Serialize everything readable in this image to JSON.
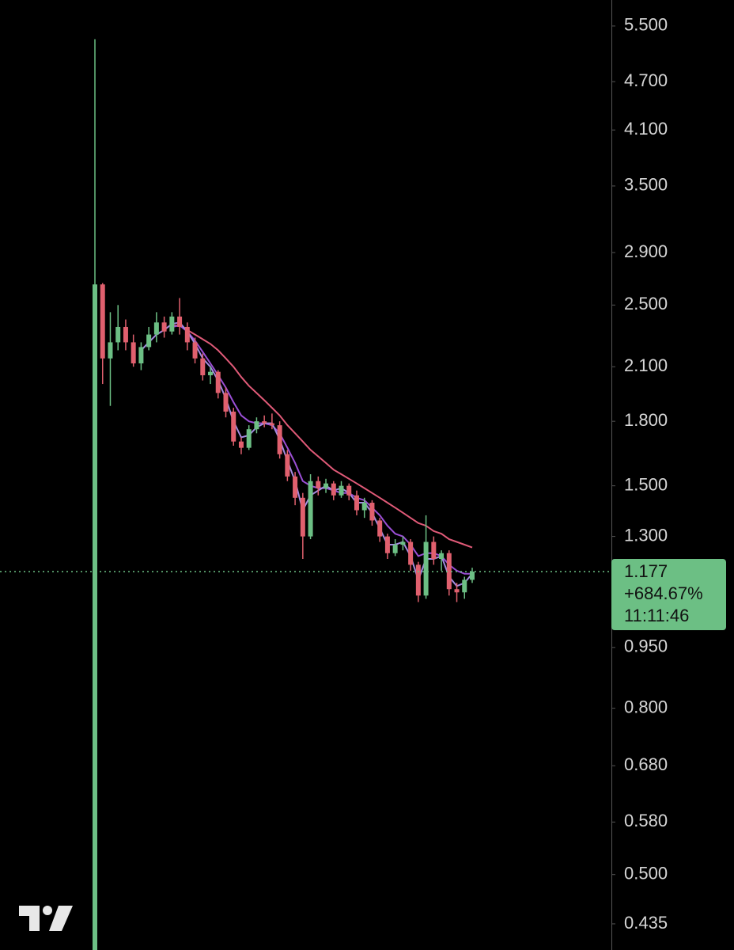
{
  "chart_data": {
    "type": "candlestick",
    "log_scale": true,
    "ylim": [
      0.404,
      5.92
    ],
    "yticks": [
      {
        "value": 5.5,
        "label": "5.500"
      },
      {
        "value": 4.7,
        "label": "4.700"
      },
      {
        "value": 4.1,
        "label": "4.100"
      },
      {
        "value": 3.5,
        "label": "3.500"
      },
      {
        "value": 2.9,
        "label": "2.900"
      },
      {
        "value": 2.5,
        "label": "2.500"
      },
      {
        "value": 2.1,
        "label": "2.100"
      },
      {
        "value": 1.8,
        "label": "1.800"
      },
      {
        "value": 1.5,
        "label": "1.500"
      },
      {
        "value": 1.3,
        "label": "1.300"
      },
      {
        "value": 0.95,
        "label": "0.950"
      },
      {
        "value": 0.8,
        "label": "0.800"
      },
      {
        "value": 0.68,
        "label": "0.680"
      },
      {
        "value": 0.58,
        "label": "0.580"
      },
      {
        "value": 0.5,
        "label": "0.500"
      },
      {
        "value": 0.435,
        "label": "0.435"
      }
    ],
    "up_color": "#6cbf84",
    "down_color": "#e0606e",
    "open": [
      0.4,
      2.65,
      2.15,
      2.25,
      2.35,
      2.25,
      2.12,
      2.22,
      2.3,
      2.38,
      2.32,
      2.42,
      2.35,
      2.25,
      2.15,
      2.05,
      2.07,
      1.95,
      1.85,
      1.7,
      1.67,
      1.76,
      1.8,
      1.79,
      1.78,
      1.64,
      1.54,
      1.45,
      1.3,
      1.52,
      1.49,
      1.51,
      1.46,
      1.5,
      1.46,
      1.4,
      1.43,
      1.36,
      1.3,
      1.24,
      1.27,
      1.28,
      1.2,
      1.1,
      1.28,
      1.22,
      1.24,
      1.12,
      1.11,
      1.15
    ],
    "high": [
      5.3,
      2.66,
      2.45,
      2.5,
      2.4,
      2.3,
      2.25,
      2.35,
      2.45,
      2.42,
      2.45,
      2.55,
      2.38,
      2.28,
      2.18,
      2.1,
      2.08,
      1.98,
      1.87,
      1.72,
      1.78,
      1.82,
      1.83,
      1.84,
      1.8,
      1.66,
      1.56,
      1.47,
      1.55,
      1.54,
      1.53,
      1.52,
      1.52,
      1.51,
      1.48,
      1.45,
      1.44,
      1.37,
      1.31,
      1.29,
      1.3,
      1.29,
      1.21,
      1.38,
      1.3,
      1.25,
      1.25,
      1.14,
      1.16,
      1.19
    ],
    "low": [
      0.4,
      2.0,
      1.88,
      2.2,
      2.2,
      2.1,
      2.08,
      2.2,
      2.25,
      2.28,
      2.3,
      2.3,
      2.2,
      2.12,
      2.02,
      2.0,
      1.92,
      1.82,
      1.68,
      1.64,
      1.66,
      1.74,
      1.77,
      1.76,
      1.62,
      1.52,
      1.42,
      1.22,
      1.29,
      1.46,
      1.47,
      1.44,
      1.45,
      1.44,
      1.38,
      1.37,
      1.34,
      1.28,
      1.22,
      1.23,
      1.25,
      1.18,
      1.08,
      1.09,
      1.2,
      1.18,
      1.1,
      1.08,
      1.09,
      1.14
    ],
    "close": [
      2.65,
      2.15,
      2.25,
      2.35,
      2.25,
      2.12,
      2.22,
      2.3,
      2.38,
      2.32,
      2.42,
      2.35,
      2.25,
      2.15,
      2.05,
      2.07,
      1.95,
      1.85,
      1.7,
      1.67,
      1.76,
      1.8,
      1.79,
      1.78,
      1.64,
      1.54,
      1.45,
      1.3,
      1.52,
      1.49,
      1.51,
      1.46,
      1.5,
      1.46,
      1.4,
      1.43,
      1.36,
      1.3,
      1.24,
      1.27,
      1.28,
      1.2,
      1.1,
      1.28,
      1.22,
      1.24,
      1.12,
      1.11,
      1.15,
      1.177
    ],
    "lines": [
      {
        "color": "#e05a78",
        "values": [
          null,
          null,
          null,
          null,
          null,
          null,
          null,
          null,
          null,
          null,
          2.36,
          2.36,
          2.33,
          2.3,
          2.27,
          2.24,
          2.2,
          2.15,
          2.1,
          2.04,
          1.99,
          1.95,
          1.91,
          1.87,
          1.83,
          1.78,
          1.74,
          1.7,
          1.66,
          1.63,
          1.6,
          1.57,
          1.55,
          1.53,
          1.51,
          1.49,
          1.47,
          1.45,
          1.43,
          1.41,
          1.39,
          1.37,
          1.35,
          1.34,
          1.32,
          1.31,
          1.29,
          1.28,
          1.27,
          1.26
        ]
      },
      {
        "color": "#9b4fd6",
        "values": [
          null,
          null,
          null,
          null,
          null,
          null,
          null,
          null,
          null,
          null,
          2.35,
          2.36,
          2.32,
          2.26,
          2.19,
          2.12,
          2.05,
          1.98,
          1.9,
          1.83,
          1.8,
          1.79,
          1.79,
          1.78,
          1.74,
          1.67,
          1.6,
          1.52,
          1.5,
          1.49,
          1.49,
          1.48,
          1.47,
          1.47,
          1.45,
          1.44,
          1.41,
          1.38,
          1.34,
          1.31,
          1.3,
          1.27,
          1.23,
          1.24,
          1.24,
          1.23,
          1.2,
          1.18,
          1.17,
          1.17
        ]
      },
      {
        "color": "#a48be0",
        "values": [
          null,
          null,
          null,
          null,
          null,
          null,
          2.2,
          2.25,
          2.3,
          2.33,
          2.37,
          2.38,
          2.32,
          2.24,
          2.15,
          2.1,
          2.02,
          1.92,
          1.8,
          1.72,
          1.73,
          1.77,
          1.79,
          1.79,
          1.71,
          1.61,
          1.52,
          1.4,
          1.46,
          1.48,
          1.5,
          1.48,
          1.49,
          1.47,
          1.43,
          1.43,
          1.39,
          1.33,
          1.27,
          1.27,
          1.28,
          1.23,
          1.15,
          1.22,
          1.22,
          1.23,
          1.16,
          1.13,
          1.14,
          1.17
        ]
      }
    ],
    "price_label": {
      "value": 1.177,
      "change": "+684.67%",
      "time": "11:11:46",
      "color": "#6cbf84"
    }
  }
}
